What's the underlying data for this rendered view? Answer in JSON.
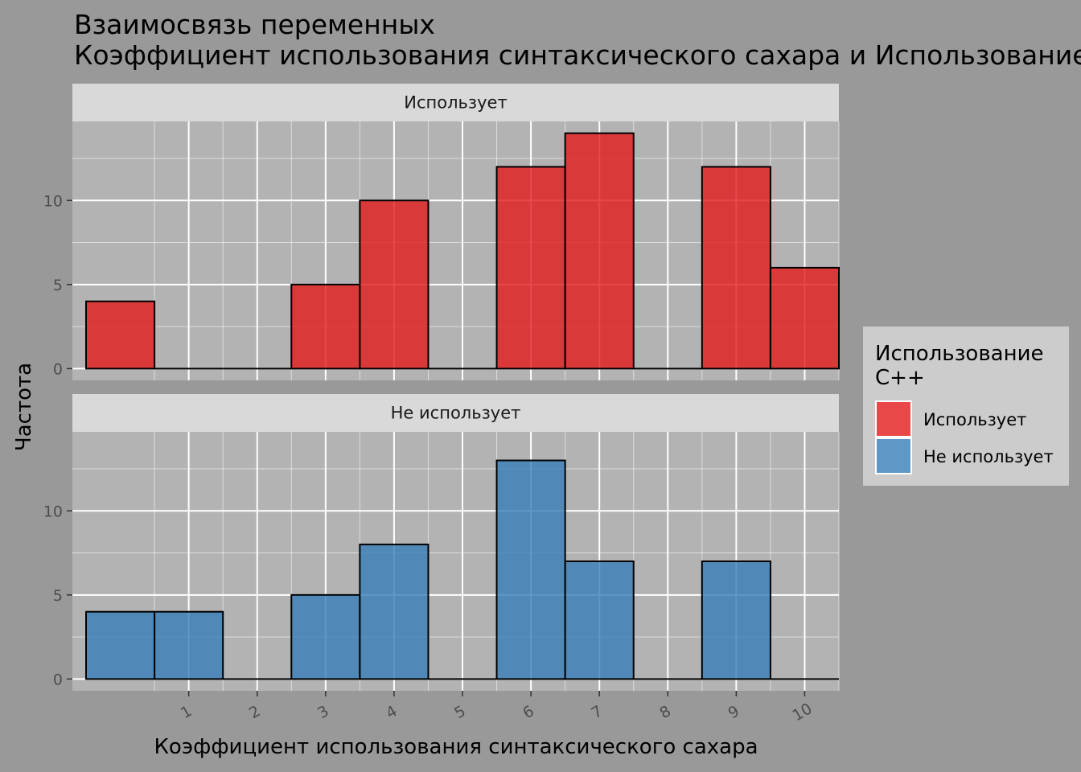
{
  "chart_data": {
    "type": "bar",
    "title_line1": "Взаимосвязь переменных",
    "title_line2": " Коэффициент использования синтаксического сахара и Использование C++",
    "xlabel": "Коэффициент использования синтаксического сахара",
    "ylabel": "Частота",
    "x_ticks": [
      1,
      2,
      3,
      4,
      5,
      6,
      7,
      8,
      9,
      10
    ],
    "y_ticks": [
      0,
      5,
      10
    ],
    "xlim": [
      -0.7,
      10.5
    ],
    "ylim": [
      -0.7,
      14.7
    ],
    "bin_width": 1,
    "bin_centers": [
      0,
      1,
      2,
      3,
      4,
      5,
      6,
      7,
      8,
      9,
      10
    ],
    "legend_title_line1": "Использование",
    "legend_title_line2": "C++",
    "legend_position": "right",
    "grid": true,
    "panels": [
      {
        "strip": "Использует",
        "name": "Использует",
        "color": "#E41A1C",
        "values": [
          4,
          0,
          0,
          5,
          10,
          0,
          12,
          14,
          0,
          12,
          6
        ]
      },
      {
        "strip": "Не использует",
        "name": "Не использует",
        "color": "#377EB8",
        "values": [
          4,
          4,
          0,
          5,
          8,
          0,
          13,
          7,
          0,
          7,
          0
        ]
      }
    ]
  },
  "colors": {
    "background": "#999999",
    "panel": "#B3B3B3",
    "strip": "#D9D9D9",
    "legend_box": "#CCCCCC",
    "grid": "#FFFFFF",
    "bar_outline": "#000000"
  }
}
